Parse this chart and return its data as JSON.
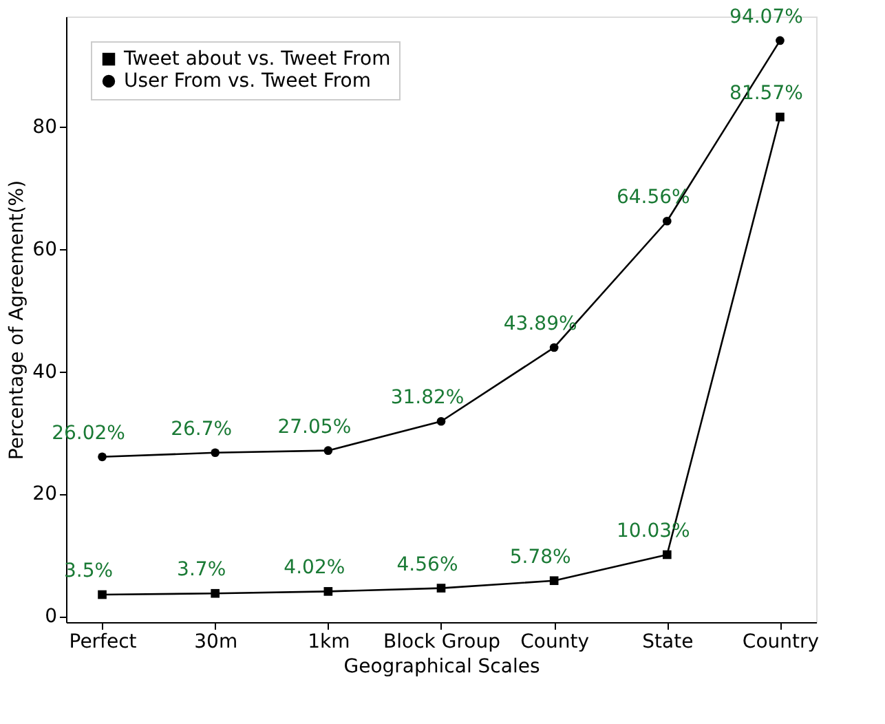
{
  "chart_data": {
    "type": "line",
    "xlabel": "Geographical Scales",
    "ylabel": "Percentage of Agreement(%)",
    "categories": [
      "Perfect",
      "30m",
      "1km",
      "Block Group",
      "County",
      "State",
      "Country"
    ],
    "series": [
      {
        "name": "Tweet about vs. Tweet From",
        "color": "#000000",
        "marker": "square",
        "values": [
          3.5,
          3.7,
          4.02,
          4.56,
          5.78,
          10.03,
          81.57
        ],
        "value_labels": [
          "3.5%",
          "3.7%",
          "4.02%",
          "4.56%",
          "5.78%",
          "10.03%",
          "81.57%"
        ]
      },
      {
        "name": "User From vs. Tweet From",
        "color": "#000000",
        "marker": "circle",
        "values": [
          26.02,
          26.7,
          27.05,
          31.82,
          43.89,
          64.56,
          94.07
        ],
        "value_labels": [
          "26.02%",
          "26.7%",
          "27.05%",
          "31.82%",
          "43.89%",
          "64.56%",
          "94.07%"
        ]
      }
    ],
    "ylim": [
      -1,
      98
    ],
    "yticks": [
      0,
      20,
      40,
      60,
      80
    ],
    "legend": "top left",
    "grid": false
  }
}
